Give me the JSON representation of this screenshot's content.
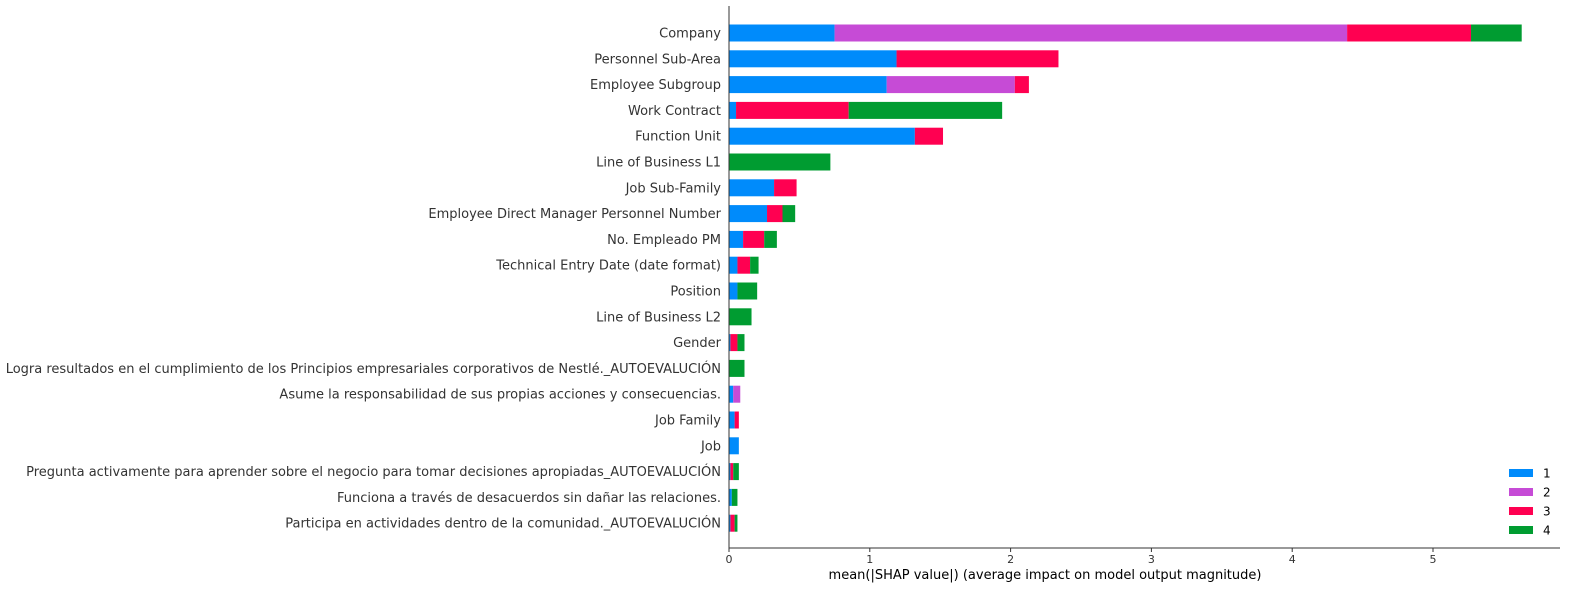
{
  "chart_data": {
    "type": "bar",
    "orientation": "horizontal",
    "stacked": true,
    "xlabel": "mean(|SHAP value|) (average impact on model output magnitude)",
    "xlim": [
      0,
      5.85
    ],
    "xticks": [
      "0",
      "1",
      "2",
      "3",
      "4",
      "5"
    ],
    "grid": false,
    "legend_position": "lower-right",
    "categories": [
      "Company",
      "Personnel Sub-Area",
      "Employee Subgroup",
      "Work Contract",
      "Function Unit",
      "Line of Business L1",
      "Job Sub-Family",
      "Employee Direct Manager Personnel Number",
      "No. Empleado PM",
      "Technical Entry Date (date format)",
      "Position",
      "Line of Business L2",
      "Gender",
      "Logra resultados en el cumplimiento de los Principios empresariales corporativos de Nestlé._AUTOEVALUCIÓN",
      "Asume la responsabilidad de sus propias acciones y consecuencias.",
      "Job Family",
      "Job",
      "Pregunta activamente para aprender sobre el negocio para tomar decisiones apropiadas_AUTOEVALUCIÓN",
      "Funciona a través de desacuerdos sin dañar las relaciones.",
      "Participa en actividades dentro de la comunidad._AUTOEVALUCIÓN"
    ],
    "series": [
      {
        "name": "1",
        "color": "#008bfb",
        "values": [
          0.75,
          1.19,
          1.12,
          0.05,
          1.32,
          0.0,
          0.32,
          0.27,
          0.1,
          0.06,
          0.06,
          0.0,
          0.01,
          0.0,
          0.03,
          0.04,
          0.07,
          0.01,
          0.02,
          0.01
        ]
      },
      {
        "name": "2",
        "color": "#c64bd6",
        "values": [
          3.64,
          0.0,
          0.91,
          0.0,
          0.0,
          0.0,
          0.0,
          0.0,
          0.0,
          0.0,
          0.0,
          0.0,
          0.0,
          0.0,
          0.05,
          0.0,
          0.0,
          0.0,
          0.0,
          0.0
        ]
      },
      {
        "name": "3",
        "color": "#ff0051",
        "values": [
          0.88,
          1.15,
          0.1,
          0.8,
          0.2,
          0.0,
          0.16,
          0.11,
          0.15,
          0.09,
          0.0,
          0.0,
          0.05,
          0.0,
          0.0,
          0.03,
          0.0,
          0.02,
          0.0,
          0.03
        ]
      },
      {
        "name": "4",
        "color": "#009c31",
        "values": [
          0.36,
          0.0,
          0.0,
          1.09,
          0.0,
          0.72,
          0.0,
          0.09,
          0.09,
          0.06,
          0.14,
          0.16,
          0.05,
          0.11,
          0.0,
          0.0,
          0.0,
          0.04,
          0.04,
          0.02
        ]
      }
    ]
  }
}
